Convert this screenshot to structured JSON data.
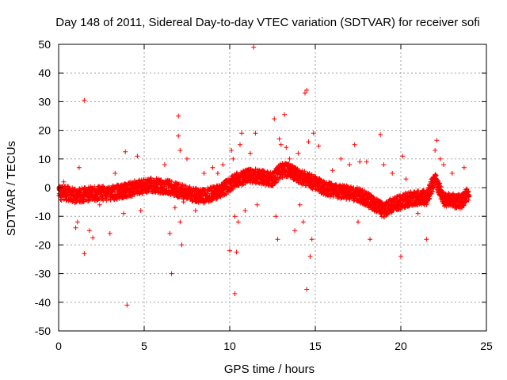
{
  "chart_data": {
    "type": "scatter",
    "title": "Day 148 of 2011, Sidereal Day-to-day VTEC variation (SDTVAR) for receiver sofi",
    "xlabel": "GPS time / hours",
    "ylabel": "SDTVAR / TECUs",
    "xlim": [
      0,
      25
    ],
    "ylim": [
      -50,
      50
    ],
    "xticks": [
      0,
      5,
      10,
      15,
      20,
      25
    ],
    "yticks": [
      -50,
      -40,
      -30,
      -20,
      -10,
      0,
      10,
      20,
      30,
      40,
      50
    ],
    "grid": true,
    "marker": "+",
    "color": "#ff0000",
    "series": [
      {
        "name": "SDTVAR",
        "trend": {
          "x": [
            0,
            0.5,
            1,
            1.5,
            2,
            2.5,
            3,
            3.5,
            4,
            4.5,
            5,
            5.5,
            6,
            6.5,
            7,
            7.5,
            8,
            8.5,
            9,
            9.5,
            10,
            10.5,
            11,
            11.5,
            12,
            12.5,
            13,
            13.5,
            14,
            14.5,
            15,
            15.5,
            16,
            16.5,
            17,
            17.5,
            18,
            18.5,
            19,
            19.5,
            20,
            20.5,
            21,
            21.5,
            22,
            22.5,
            23,
            23.5,
            24
          ],
          "y": [
            -2,
            -2,
            -3,
            -2.5,
            -2,
            -2,
            -2,
            -1.5,
            -1,
            0,
            0.5,
            1,
            0.5,
            0,
            -1,
            -2,
            -2.5,
            -3,
            -2,
            -1,
            1,
            3,
            4,
            4,
            3.5,
            3,
            6,
            6,
            4,
            3,
            1.5,
            0,
            -1,
            -1.5,
            -2,
            -2.5,
            -4,
            -6,
            -8,
            -6,
            -5,
            -4,
            -3.5,
            -3.5,
            3,
            -4,
            -4.5,
            -5,
            -2
          ]
        },
        "spread": 2.5,
        "outliers": [
          [
            0.3,
            2
          ],
          [
            1.0,
            -14
          ],
          [
            1.1,
            -12
          ],
          [
            1.2,
            7
          ],
          [
            1.5,
            30.5
          ],
          [
            1.5,
            -23
          ],
          [
            1.8,
            -15
          ],
          [
            2.0,
            -17.5
          ],
          [
            2.4,
            -6
          ],
          [
            3.0,
            -16
          ],
          [
            3.3,
            5
          ],
          [
            3.8,
            -9
          ],
          [
            3.9,
            12.5
          ],
          [
            4.0,
            -41
          ],
          [
            4.3,
            -3
          ],
          [
            4.6,
            11
          ],
          [
            4.8,
            -8
          ],
          [
            6.2,
            8
          ],
          [
            6.5,
            -16
          ],
          [
            6.6,
            -30
          ],
          [
            6.8,
            -7
          ],
          [
            7.0,
            25
          ],
          [
            7.0,
            18
          ],
          [
            7.1,
            13
          ],
          [
            7.1,
            -12
          ],
          [
            7.2,
            -20
          ],
          [
            7.3,
            -5
          ],
          [
            7.5,
            10
          ],
          [
            8.0,
            -8
          ],
          [
            8.5,
            5
          ],
          [
            9.0,
            7
          ],
          [
            9.3,
            5
          ],
          [
            9.6,
            8
          ],
          [
            10.0,
            -22
          ],
          [
            10.1,
            13
          ],
          [
            10.2,
            10
          ],
          [
            10.3,
            -10
          ],
          [
            10.3,
            -37
          ],
          [
            10.4,
            -22.5
          ],
          [
            10.5,
            -12
          ],
          [
            10.6,
            15
          ],
          [
            10.7,
            19
          ],
          [
            10.9,
            -8
          ],
          [
            11.2,
            12
          ],
          [
            11.4,
            49
          ],
          [
            11.5,
            19
          ],
          [
            11.6,
            -6
          ],
          [
            12.3,
            4
          ],
          [
            12.6,
            24
          ],
          [
            12.7,
            -10
          ],
          [
            12.8,
            -18
          ],
          [
            12.9,
            17
          ],
          [
            13.0,
            15
          ],
          [
            13.2,
            25.5
          ],
          [
            13.3,
            14
          ],
          [
            13.5,
            10
          ],
          [
            13.8,
            -15
          ],
          [
            14.0,
            12
          ],
          [
            14.1,
            -6
          ],
          [
            14.3,
            -12
          ],
          [
            14.4,
            33
          ],
          [
            14.5,
            34
          ],
          [
            14.5,
            -35.5
          ],
          [
            14.6,
            16
          ],
          [
            14.7,
            -24
          ],
          [
            14.8,
            -18
          ],
          [
            14.9,
            19
          ],
          [
            15.2,
            14.5
          ],
          [
            16.0,
            6
          ],
          [
            16.5,
            10
          ],
          [
            17.0,
            8
          ],
          [
            17.3,
            15
          ],
          [
            17.5,
            -12
          ],
          [
            17.6,
            9
          ],
          [
            18.0,
            9
          ],
          [
            18.2,
            -18
          ],
          [
            18.8,
            18.5
          ],
          [
            19.0,
            8
          ],
          [
            19.5,
            5
          ],
          [
            20.0,
            -24
          ],
          [
            20.1,
            11
          ],
          [
            20.3,
            3
          ],
          [
            21.0,
            -9
          ],
          [
            21.5,
            -18
          ],
          [
            22.0,
            13
          ],
          [
            22.1,
            16.5
          ],
          [
            22.3,
            10
          ],
          [
            22.5,
            8
          ],
          [
            23.0,
            5
          ],
          [
            23.7,
            7
          ]
        ]
      }
    ]
  }
}
